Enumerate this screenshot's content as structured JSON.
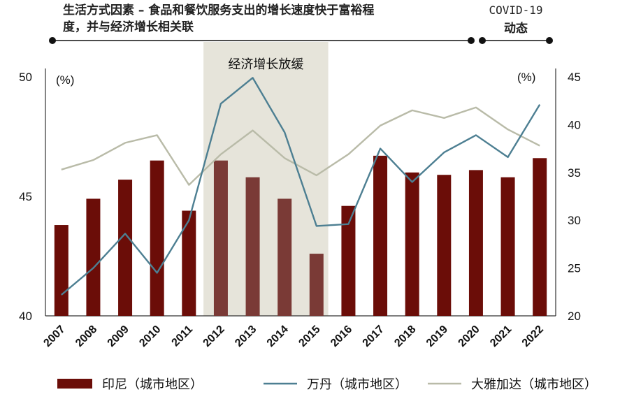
{
  "header": {
    "title_line1": "生活方式因素 – 食品和餐饮服务支出的增长速度快于富裕程",
    "title_line2": "度，并与经济增长相关联",
    "covid_line1": "COVID-19",
    "covid_line2": "动态",
    "slowdown_label": "经济增长放缓"
  },
  "axes": {
    "left_unit": "(%)",
    "right_unit": "(%)"
  },
  "chart_data": {
    "type": "bar",
    "title": "生活方式因素 – 食品和餐饮服务支出的增长速度快于富裕程度，并与经济增长相关联",
    "categories": [
      "2007",
      "2008",
      "2009",
      "2010",
      "2011",
      "2012",
      "2013",
      "2014",
      "2015",
      "2016",
      "2017",
      "2018",
      "2019",
      "2020",
      "2021",
      "2022"
    ],
    "left_axis": {
      "ylim": [
        40,
        50
      ],
      "ticks": [
        40,
        45,
        50
      ],
      "unit": "(%)"
    },
    "right_axis": {
      "ylim": [
        20,
        45
      ],
      "ticks": [
        20,
        25,
        30,
        35,
        40,
        45
      ],
      "unit": "(%)"
    },
    "highlight_range": {
      "from": "2012",
      "to": "2015",
      "label": "经济增长放缓"
    },
    "series": [
      {
        "name": "印尼（城市地区）",
        "type": "bar",
        "axis": "left",
        "color": "#6b0d08",
        "highlight_color": "#7a3a36",
        "values": [
          43.8,
          44.9,
          45.7,
          46.5,
          44.4,
          46.5,
          45.8,
          44.9,
          42.6,
          44.6,
          46.7,
          46.0,
          45.9,
          46.1,
          45.8,
          46.6
        ]
      },
      {
        "name": "万丹（城市地区）",
        "type": "line",
        "axis": "right",
        "color": "#4d7f92",
        "values": [
          22.2,
          25.0,
          28.6,
          24.5,
          30.0,
          42.2,
          44.9,
          39.2,
          29.4,
          29.6,
          37.5,
          34.0,
          37.1,
          38.9,
          36.6,
          42.1
        ]
      },
      {
        "name": "大雅加达（城市地区）",
        "type": "line",
        "axis": "right",
        "color": "#b9bba8",
        "values": [
          35.3,
          36.3,
          38.1,
          38.9,
          33.7,
          36.9,
          39.4,
          36.5,
          34.7,
          36.9,
          39.9,
          41.5,
          40.7,
          41.8,
          39.5,
          37.8
        ]
      }
    ]
  }
}
